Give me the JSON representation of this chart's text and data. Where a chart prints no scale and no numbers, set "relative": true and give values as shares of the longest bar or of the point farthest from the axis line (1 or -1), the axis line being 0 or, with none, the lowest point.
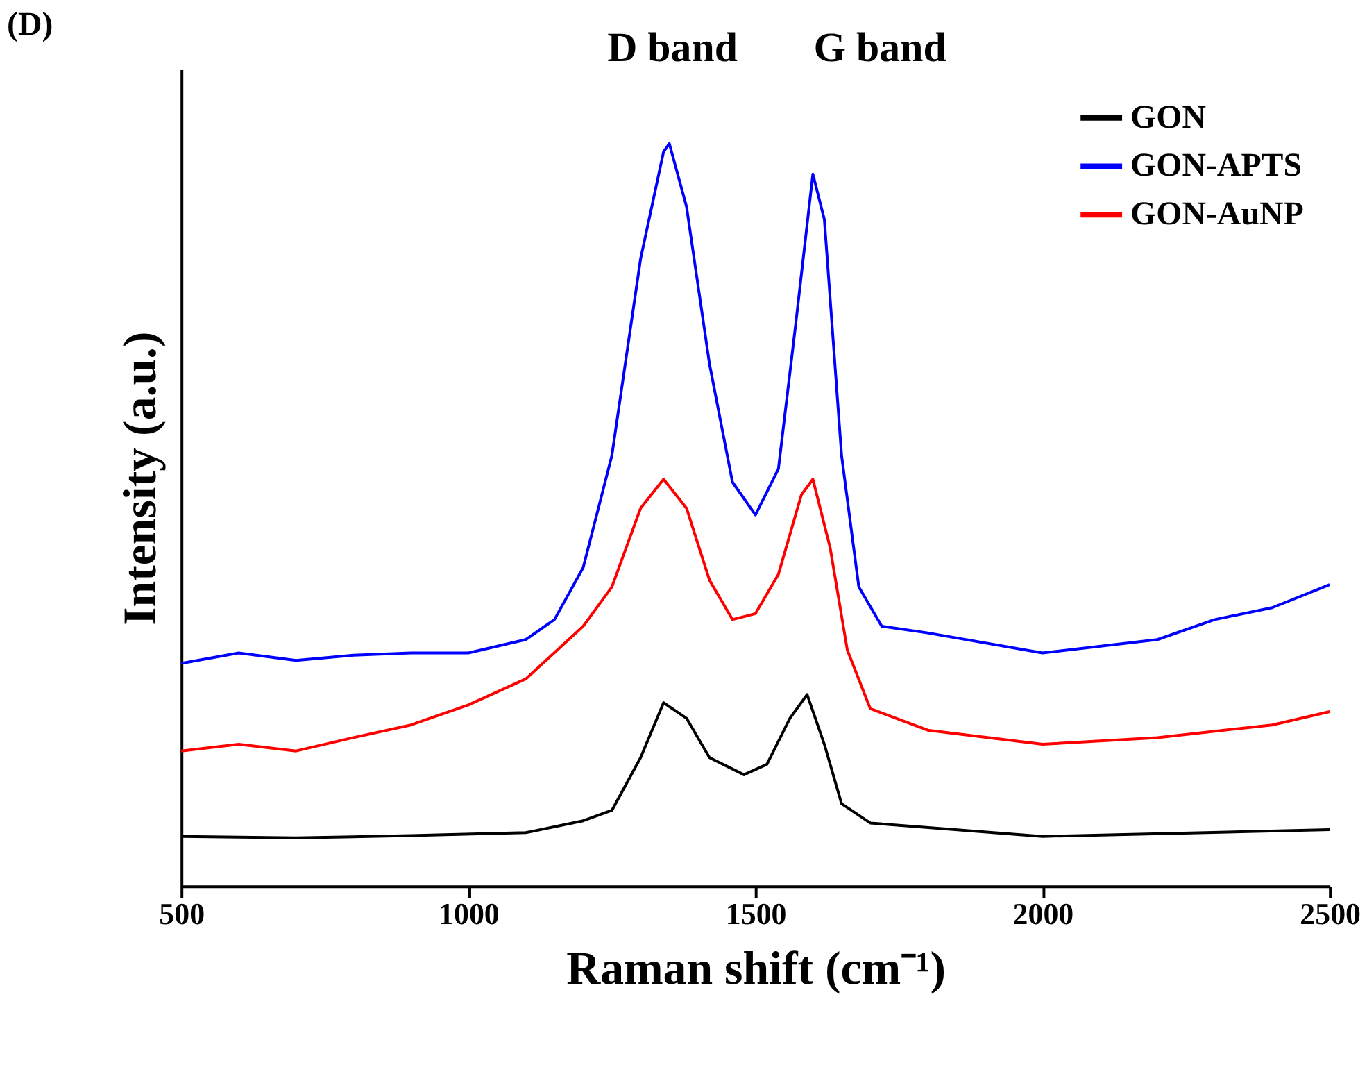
{
  "chart_data": {
    "type": "line",
    "title": "(D)",
    "xlabel": "Raman shift (cm⁻¹)",
    "ylabel": "Intensity (a.u.)",
    "relative": true,
    "xlim": [
      500,
      2500
    ],
    "xticks": [
      500,
      1000,
      1500,
      2000,
      2500
    ],
    "tick_labels": "x",
    "legend": "top right",
    "grid": false,
    "marker": "none",
    "line_style": "solid",
    "annotations": [
      "D band",
      "G band"
    ],
    "series": [
      {
        "name": "GON",
        "color": "#000000",
        "x": [
          500,
          700,
          900,
          1100,
          1200,
          1250,
          1300,
          1340,
          1380,
          1420,
          1480,
          1520,
          1560,
          1590,
          1620,
          1650,
          1700,
          2000,
          2500
        ],
        "values": [
          0.067,
          0.065,
          0.068,
          0.072,
          0.088,
          0.102,
          0.173,
          0.247,
          0.226,
          0.173,
          0.15,
          0.164,
          0.226,
          0.258,
          0.191,
          0.111,
          0.085,
          0.067,
          0.076
        ]
      },
      {
        "name": "GON-APTS",
        "color": "#0000ff",
        "x": [
          500,
          600,
          700,
          800,
          900,
          1000,
          1100,
          1150,
          1200,
          1250,
          1300,
          1340,
          1350,
          1380,
          1420,
          1460,
          1500,
          1540,
          1570,
          1600,
          1620,
          1650,
          1680,
          1720,
          1800,
          2000,
          2200,
          2300,
          2400,
          2500
        ],
        "values": [
          0.3,
          0.314,
          0.304,
          0.311,
          0.314,
          0.314,
          0.332,
          0.359,
          0.429,
          0.58,
          0.845,
          0.989,
          1.0,
          0.915,
          0.703,
          0.544,
          0.5,
          0.562,
          0.756,
          0.959,
          0.898,
          0.58,
          0.403,
          0.35,
          0.341,
          0.314,
          0.332,
          0.359,
          0.375,
          0.406
        ]
      },
      {
        "name": "GON-AuNP",
        "color": "#ff0000",
        "x": [
          500,
          600,
          700,
          800,
          900,
          1000,
          1100,
          1200,
          1250,
          1300,
          1340,
          1380,
          1420,
          1460,
          1500,
          1540,
          1580,
          1600,
          1630,
          1660,
          1700,
          1800,
          2000,
          2200,
          2400,
          2500
        ],
        "values": [
          0.182,
          0.191,
          0.182,
          0.2,
          0.217,
          0.244,
          0.279,
          0.35,
          0.403,
          0.509,
          0.548,
          0.509,
          0.412,
          0.359,
          0.367,
          0.42,
          0.527,
          0.548,
          0.456,
          0.318,
          0.239,
          0.21,
          0.191,
          0.2,
          0.217,
          0.235
        ]
      }
    ]
  }
}
